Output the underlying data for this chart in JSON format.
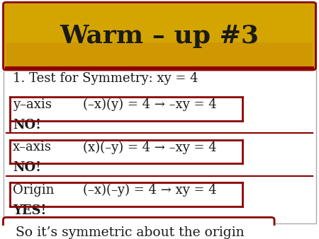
{
  "title": "Warm – up #3",
  "title_fontsize": 26,
  "title_color": "#1a1a1a",
  "header_bg_top": "#d4a017",
  "header_bg_bottom": "#c8860a",
  "border_color": "#8b0000",
  "body_bg": "#ffffff",
  "text_color": "#1a1a1a",
  "line1": "1. Test for Symmetry: xy = 4",
  "line2a": "y–axis",
  "line2b": "(–x)(y) = 4 → –xy = 4",
  "line3": "NO!",
  "line4a": "x–axis",
  "line4b": "(x)(–y) = 4 → –xy = 4",
  "line5": "NO!",
  "line6a": "Origin",
  "line6b": "(–x)(–y) = 4 → xy = 4",
  "line7": "YES!",
  "line8": "So it’s symmetric about the origin",
  "main_fontsize": 13,
  "small_fontsize": 13
}
